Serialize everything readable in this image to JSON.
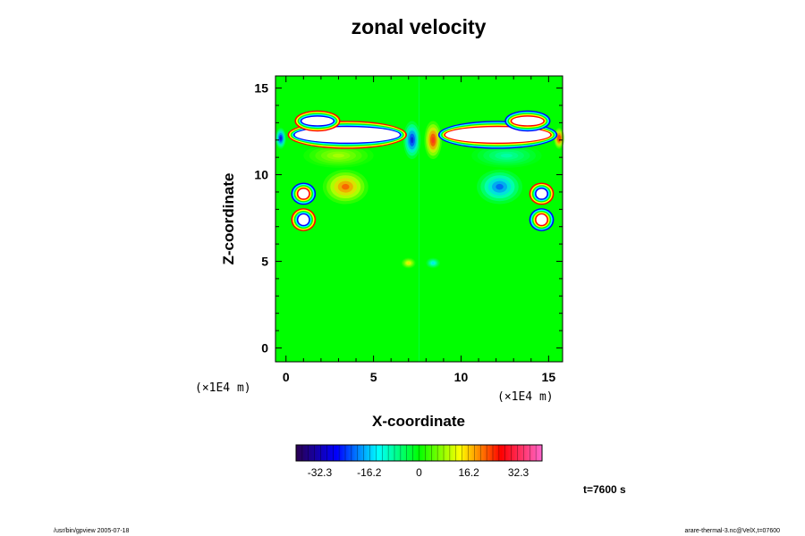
{
  "chart_data": {
    "type": "heatmap",
    "title": "zonal velocity",
    "xlabel": "X-coordinate",
    "ylabel": "Z-coordinate",
    "xlim": [
      -0.6,
      15.8
    ],
    "ylim": [
      -0.8,
      15.7
    ],
    "x_ticks": [
      "0",
      "5",
      "10",
      "15"
    ],
    "y_ticks": [
      "0",
      "5",
      "10",
      "15"
    ],
    "x_unit": "(×1E4 m)",
    "y_unit": "(×1E4 m)",
    "colorbar": {
      "min": -40,
      "max": 40,
      "ticks": [
        "-32.3",
        "-16.2",
        "0",
        "16.2",
        "32.3"
      ],
      "tick_values": [
        -32.3,
        -16.2,
        0,
        16.2,
        32.3
      ],
      "colors": [
        "#2a0050",
        "#0000ff",
        "#00ffff",
        "#00ff00",
        "#ffff00",
        "#ff0000",
        "#ff66cc"
      ]
    },
    "background_value": 0,
    "features": [
      {
        "x": 3.4,
        "z": 9.3,
        "value": 24,
        "sx": 1.3,
        "sz": 1.0
      },
      {
        "x": 12.2,
        "z": 9.3,
        "value": -24,
        "sx": 1.3,
        "sz": 1.0
      },
      {
        "x": 7.2,
        "z": 12.0,
        "value": -30,
        "sx": 0.5,
        "sz": 1.1
      },
      {
        "x": 8.4,
        "z": 12.0,
        "value": 30,
        "sx": 0.5,
        "sz": 1.1
      },
      {
        "x": 1.0,
        "z": 8.9,
        "value": -34,
        "sx": 0.45,
        "sz": 0.5
      },
      {
        "x": 1.0,
        "z": 7.4,
        "value": 34,
        "sx": 0.45,
        "sz": 0.5
      },
      {
        "x": 14.6,
        "z": 8.9,
        "value": 34,
        "sx": 0.45,
        "sz": 0.5
      },
      {
        "x": 14.6,
        "z": 7.4,
        "value": -34,
        "sx": 0.45,
        "sz": 0.5
      },
      {
        "x": -0.3,
        "z": 12.1,
        "value": -32,
        "sx": 0.3,
        "sz": 0.6
      },
      {
        "x": 15.6,
        "z": 12.1,
        "value": 32,
        "sx": 0.3,
        "sz": 0.6
      },
      {
        "x": 7.0,
        "z": 4.9,
        "value": 16,
        "sx": 0.4,
        "sz": 0.3
      },
      {
        "x": 8.4,
        "z": 4.9,
        "value": -16,
        "sx": 0.4,
        "sz": 0.3
      },
      {
        "x": 3.0,
        "z": 11.1,
        "value": 10,
        "sx": 2.0,
        "sz": 0.7
      },
      {
        "x": 12.6,
        "z": 11.1,
        "value": -10,
        "sx": 2.0,
        "sz": 0.7
      }
    ],
    "blobs": [
      {
        "x": 3.5,
        "z": 12.3,
        "value": 40,
        "sx": 3.0,
        "sz": 0.45
      },
      {
        "x": 12.1,
        "z": 12.3,
        "value": -40,
        "sx": 3.0,
        "sz": 0.45
      },
      {
        "x": 1.8,
        "z": 13.1,
        "value": 40,
        "sx": 0.9,
        "sz": 0.25
      },
      {
        "x": 13.8,
        "z": 13.1,
        "value": -40,
        "sx": 0.9,
        "sz": 0.25
      },
      {
        "x": 1.0,
        "z": 7.4,
        "value": 40,
        "sx": 0.3,
        "sz": 0.3
      },
      {
        "x": 14.6,
        "z": 7.4,
        "value": -40,
        "sx": 0.3,
        "sz": 0.3
      },
      {
        "x": 1.0,
        "z": 8.9,
        "value": -40,
        "sx": 0.3,
        "sz": 0.28
      },
      {
        "x": 14.6,
        "z": 8.9,
        "value": 40,
        "sx": 0.3,
        "sz": 0.28
      }
    ]
  },
  "time_label": "t=7600 s",
  "footer": {
    "left": "/usr/bin/gpview 2005-07-18",
    "right": "arare-thermal-3.nc@VelX,t=07600"
  }
}
